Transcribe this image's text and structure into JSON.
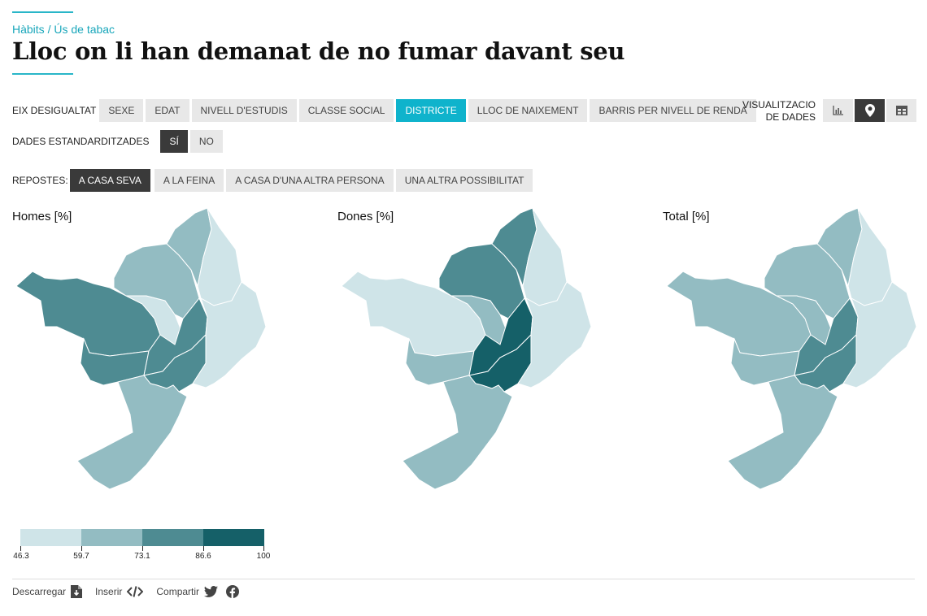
{
  "header": {
    "breadcrumb": "Hàbits / Ús de tabac",
    "title": "Lloc on li han demanat de no fumar davant seu"
  },
  "filters": {
    "eix_label": "EIX DESIGUALTAT",
    "eix_options": [
      "SEXE",
      "EDAT",
      "NIVELL D'ESTUDIS",
      "CLASSE SOCIAL",
      "DISTRICTE",
      "LLOC DE NAIXEMENT",
      "BARRIS PER NIVELL DE RENDA"
    ],
    "eix_selected": "DISTRICTE",
    "std_label": "DADES ESTANDARDITZADES",
    "std_options": [
      "SÍ",
      "NO"
    ],
    "std_selected": "SÍ",
    "resp_label": "REPOSTES:",
    "resp_options": [
      "A CASA SEVA",
      "A LA FEINA",
      "A CASA D'UNA ALTRA PERSONA",
      "UNA ALTRA POSSIBILITAT"
    ],
    "resp_selected": "A CASA SEVA"
  },
  "visualization": {
    "label_line1": "VISUALITZACIO",
    "label_line2": "DE DADES",
    "options": [
      "bar-chart-icon",
      "map-pin-icon",
      "table-icon"
    ],
    "selected": "map-pin-icon"
  },
  "maps": [
    {
      "title": "Homes [%]",
      "district_classes": {
        "ciutat_vella": 3,
        "eixample": 3,
        "sants_montjuic": 2,
        "les_corts": 3,
        "sarria_sant_gervasi": 3,
        "gracia": 1,
        "horta_guinardo": 2,
        "nou_barris": 2,
        "sant_andreu": 1,
        "sant_marti": 1
      }
    },
    {
      "title": "Dones [%]",
      "district_classes": {
        "ciutat_vella": 4,
        "eixample": 4,
        "sants_montjuic": 2,
        "les_corts": 2,
        "sarria_sant_gervasi": 1,
        "gracia": 2,
        "horta_guinardo": 3,
        "nou_barris": 3,
        "sant_andreu": 1,
        "sant_marti": 1
      }
    },
    {
      "title": "Total [%]",
      "district_classes": {
        "ciutat_vella": 3,
        "eixample": 3,
        "sants_montjuic": 2,
        "les_corts": 2,
        "sarria_sant_gervasi": 2,
        "gracia": 2,
        "horta_guinardo": 2,
        "nou_barris": 2,
        "sant_andreu": 1,
        "sant_marti": 1
      }
    }
  ],
  "legend": {
    "colors": [
      "#cfe4e8",
      "#93bcc2",
      "#4e8b92",
      "#156068"
    ],
    "breaks": [
      "46.3",
      "59.7",
      "73.1",
      "86.6",
      "100"
    ]
  },
  "footer": {
    "download": "Descarregar",
    "embed": "Inserir",
    "share": "Compartir"
  }
}
